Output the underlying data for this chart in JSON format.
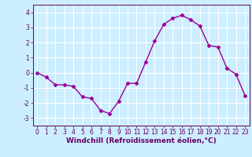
{
  "x": [
    0,
    1,
    2,
    3,
    4,
    5,
    6,
    7,
    8,
    9,
    10,
    11,
    12,
    13,
    14,
    15,
    16,
    17,
    18,
    19,
    20,
    21,
    22,
    23
  ],
  "y": [
    0.0,
    -0.3,
    -0.8,
    -0.8,
    -0.9,
    -1.6,
    -1.7,
    -2.5,
    -2.7,
    -1.9,
    -0.7,
    -0.7,
    0.7,
    2.1,
    3.2,
    3.6,
    3.8,
    3.5,
    3.1,
    1.8,
    1.7,
    0.3,
    -0.1,
    -1.5
  ],
  "line_color": "#990099",
  "marker": "D",
  "markersize": 2.5,
  "linewidth": 1.0,
  "xlabel": "Windchill (Refroidissement éolien,°C)",
  "xlabel_fontsize": 6.5,
  "background_color": "#cceeff",
  "grid_color": "#ffffff",
  "xlim": [
    -0.5,
    23.5
  ],
  "ylim": [
    -3.5,
    4.5
  ],
  "yticks": [
    -3,
    -2,
    -1,
    0,
    1,
    2,
    3,
    4
  ],
  "xticks": [
    0,
    1,
    2,
    3,
    4,
    5,
    6,
    7,
    8,
    9,
    10,
    11,
    12,
    13,
    14,
    15,
    16,
    17,
    18,
    19,
    20,
    21,
    22,
    23
  ],
  "tick_fontsize": 5.5,
  "tick_color": "#660066",
  "spine_color": "#660066"
}
